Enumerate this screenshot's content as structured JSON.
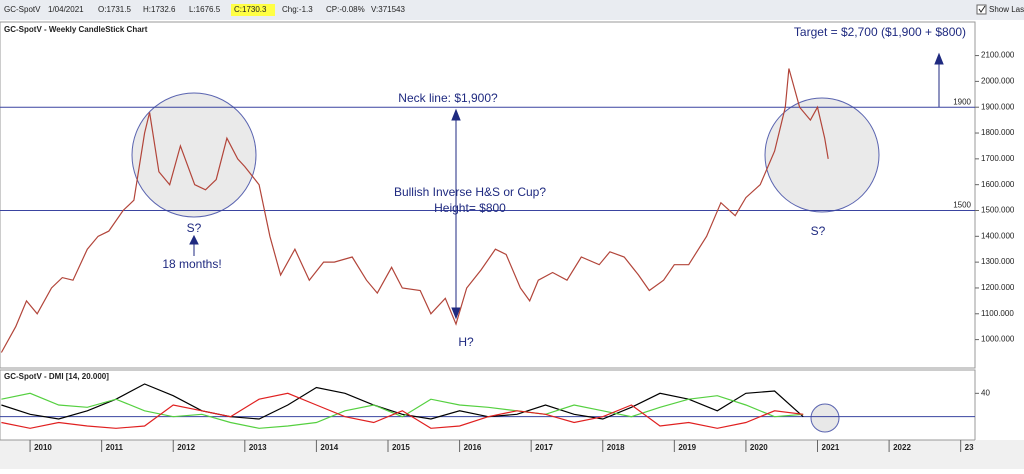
{
  "toolbar": {
    "symbol": "GC-SpotV",
    "date": "1/04/2021",
    "open": "O:1731.5",
    "high": "H:1732.6",
    "low": "L:1676.5",
    "close": "C:1730.3",
    "change": "Chg:-1.3",
    "change_pct": "CP:-0.08%",
    "volume": "V:371543",
    "show_last": "Show Last"
  },
  "chart_data": [
    {
      "type": "line",
      "title": "GC-SpotV - Weekly CandleStick Chart",
      "x": [
        2009.6,
        2009.8,
        2009.95,
        2010.1,
        2010.3,
        2010.45,
        2010.6,
        2010.8,
        2010.95,
        2011.1,
        2011.3,
        2011.45,
        2011.6,
        2011.67,
        2011.8,
        2011.95,
        2012.1,
        2012.3,
        2012.45,
        2012.6,
        2012.75,
        2012.9,
        2013.0,
        2013.2,
        2013.35,
        2013.5,
        2013.7,
        2013.9,
        2014.1,
        2014.25,
        2014.5,
        2014.7,
        2014.85,
        2015.05,
        2015.2,
        2015.45,
        2015.6,
        2015.8,
        2015.95,
        2016.1,
        2016.3,
        2016.5,
        2016.65,
        2016.85,
        2016.98,
        2017.1,
        2017.3,
        2017.5,
        2017.7,
        2017.95,
        2018.1,
        2018.3,
        2018.5,
        2018.65,
        2018.85,
        2019.0,
        2019.2,
        2019.45,
        2019.65,
        2019.85,
        2020.0,
        2020.2,
        2020.4,
        2020.55,
        2020.6,
        2020.75,
        2020.9,
        2021.0,
        2021.1,
        2021.15
      ],
      "values": [
        950,
        1050,
        1150,
        1100,
        1200,
        1240,
        1230,
        1350,
        1400,
        1420,
        1500,
        1540,
        1800,
        1880,
        1650,
        1600,
        1750,
        1600,
        1580,
        1620,
        1780,
        1700,
        1670,
        1600,
        1400,
        1250,
        1350,
        1230,
        1300,
        1300,
        1320,
        1230,
        1180,
        1280,
        1200,
        1190,
        1100,
        1160,
        1060,
        1200,
        1270,
        1350,
        1330,
        1200,
        1150,
        1230,
        1260,
        1230,
        1320,
        1290,
        1340,
        1320,
        1250,
        1190,
        1230,
        1290,
        1290,
        1400,
        1530,
        1480,
        1550,
        1600,
        1730,
        1900,
        2050,
        1900,
        1850,
        1900,
        1780,
        1700
      ],
      "color": "#b2453a",
      "xlim": [
        2009.58,
        2023.2
      ],
      "xticks": [
        2010,
        2011,
        2012,
        2013,
        2014,
        2015,
        2016,
        2017,
        2018,
        2019,
        2020,
        2021,
        2022,
        {
          "value": 2023,
          "label": "23"
        }
      ],
      "ylim": [
        890,
        2230
      ],
      "yticks": [
        {
          "value": 1000,
          "label": "1000.000"
        },
        {
          "value": 1100,
          "label": "1100.000"
        },
        {
          "value": 1200,
          "label": "1200.000"
        },
        {
          "value": 1300,
          "label": "1300.000"
        },
        {
          "value": 1400,
          "label": "1400.000"
        },
        {
          "value": 1500,
          "label": "1500.000"
        },
        {
          "value": 1600,
          "label": "1600.000"
        },
        {
          "value": 1700,
          "label": "1700.000"
        },
        {
          "value": 1800,
          "label": "1800.000"
        },
        {
          "value": 1900,
          "label": "1900.000"
        },
        {
          "value": 2000,
          "label": "2000.000"
        },
        {
          "value": 2100,
          "label": "2100.000"
        }
      ],
      "hlines": [
        1900,
        1500
      ],
      "annotations": [
        "Target = $2,700 ($1,900 + $800)",
        "Neck line: $1,900?",
        "Bullish Inverse H&S or Cup?",
        "Height= $800",
        "S?",
        "18 months!",
        "S?",
        "H?"
      ]
    },
    {
      "type": "line",
      "title": "GC-SpotV - DMI [14, 20.000]",
      "x": [
        2009.6,
        2010.0,
        2010.4,
        2010.8,
        2011.2,
        2011.6,
        2012.0,
        2012.4,
        2012.8,
        2013.2,
        2013.6,
        2014.0,
        2014.4,
        2014.8,
        2015.2,
        2015.6,
        2016.0,
        2016.4,
        2016.8,
        2017.2,
        2017.6,
        2018.0,
        2018.4,
        2018.8,
        2019.2,
        2019.6,
        2020.0,
        2020.4,
        2020.8
      ],
      "series": [
        {
          "color": "#000000",
          "values": [
            30,
            22,
            18,
            25,
            35,
            48,
            38,
            25,
            20,
            18,
            30,
            45,
            40,
            30,
            22,
            18,
            25,
            20,
            22,
            30,
            22,
            18,
            28,
            40,
            35,
            25,
            40,
            42,
            20
          ]
        },
        {
          "color": "#55d040",
          "values": [
            35,
            40,
            30,
            28,
            35,
            25,
            20,
            22,
            15,
            10,
            12,
            15,
            25,
            30,
            20,
            35,
            30,
            28,
            25,
            22,
            30,
            25,
            20,
            28,
            35,
            38,
            30,
            20,
            22
          ]
        },
        {
          "color": "#e02020",
          "values": [
            15,
            10,
            15,
            12,
            10,
            12,
            30,
            25,
            20,
            35,
            40,
            30,
            20,
            15,
            25,
            10,
            12,
            20,
            25,
            22,
            15,
            20,
            30,
            12,
            15,
            10,
            15,
            25,
            22
          ]
        }
      ],
      "ylim": [
        0,
        60
      ],
      "yticks": [
        40
      ],
      "threshold": 20
    }
  ]
}
